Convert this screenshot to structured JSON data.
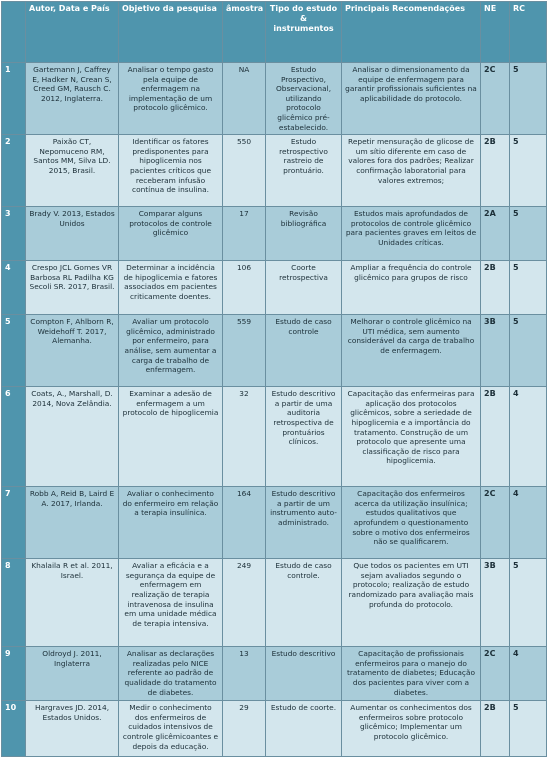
{
  "table": {
    "headers": {
      "num": "",
      "author": "Autor, Data e País",
      "objective": "Objetivo da pesquisa",
      "sample": "âmostra",
      "study": "Tipo do estudo & instrumentos",
      "recommendations": "Principais Recomendações",
      "ne": "NE",
      "rc": "RC"
    },
    "rows": [
      {
        "num": "1",
        "author": "Gartemann J, Caffrey E, Hadker N, Crean S, Creed GM, Rausch C. 2012, Inglaterra.",
        "objective": "Analisar o tempo gasto pela equipe de enfermagem na implementação de um protocolo glicêmico.",
        "sample": "NA",
        "study": "Estudo Prospectivo, Observacional, utilizando protocolo glicêmico pré-estabelecido.",
        "recommendations": "Analisar o dimensionamento da equipe de enfermagem para garantir profissionais suficientes na aplicabilidade do protocolo.",
        "ne": "2C",
        "rc": "5"
      },
      {
        "num": "2",
        "author": "Paixão CT, Nepomuceno RM, Santos MM, Silva LD. 2015, Brasil.",
        "objective": "Identificar os fatores predisponentes para hipoglicemia nos pacientes críticos que receberam infusão contínua de insulina.",
        "sample": "550",
        "study": "Estudo retrospectivo rastreio de prontuário.",
        "recommendations": "Repetir mensuração de glicose de um sítio diferente em caso de valores fora dos padrões; Realizar confirmação laboratorial para valores extremos;",
        "ne": "2B",
        "rc": "5"
      },
      {
        "num": "3",
        "author": "Brady V. 2013, Estados Unidos",
        "objective": "Comparar alguns protocolos de controle glicêmico",
        "sample": "17",
        "study": "Revisão bibliográfica",
        "recommendations": "Estudos mais aprofundados de protocolos de controle glicêmico para pacientes graves em leitos de Unidades críticas.",
        "ne": "2A",
        "rc": "5"
      },
      {
        "num": "4",
        "author": "Crespo JCL Gomes VR Barbosa RL Padilha KG Secoli SR. 2017, Brasil.",
        "objective": "Determinar a incidência de hipoglicemia e fatores associados em pacientes criticamente doentes.",
        "sample": "106",
        "study": "Coorte retrospectiva",
        "recommendations": "Ampliar a frequência do controle glicêmico para grupos de risco",
        "ne": "2B",
        "rc": "5"
      },
      {
        "num": "5",
        "author": "Compton F, Ahlborn R, Weidehoff T. 2017, Alemanha.",
        "objective": "Avaliar um protocolo glicêmico, administrado por enfermeiro, para análise, sem aumentar a carga de trabalho de enfermagem.",
        "sample": "559",
        "study": "Estudo de caso controle",
        "recommendations": "Melhorar o controle glicêmico na UTI médica, sem aumento considerável da carga de trabalho de enfermagem.",
        "ne": "3B",
        "rc": "5"
      },
      {
        "num": "6",
        "author": "Coats, A., Marshall, D. 2014, Nova Zelândia.",
        "objective": "Examinar a adesão de enfermagem a um protocolo de hipoglicemia",
        "sample": "32",
        "study": "Estudo descritivo a partir de uma auditoria retrospectiva de prontuários clínicos.",
        "recommendations": "Capacitação das enfermeiras para aplicação dos protocolos glicêmicos, sobre a seriedade de hipoglicemia e a importância do tratamento. Construção de um protocolo que apresente uma classificação de risco para hipoglicemia.",
        "ne": "2B",
        "rc": "4"
      },
      {
        "num": "7",
        "author": "Robb A, Reid B, Laird E A. 2017, Irlanda.",
        "objective": "Avaliar o conhecimento do enfermeiro em relação a terapia insulínica.",
        "sample": "164",
        "study": "Estudo descritivo a partir de um instrumento auto-administrado.",
        "recommendations": "Capacitação dos enfermeiros acerca da utilização insulínica; estudos qualitativos que aprofundem o questionamento sobre o motivo dos enfermeiros não se qualificarem.",
        "ne": "2C",
        "rc": "4"
      },
      {
        "num": "8",
        "author": "Khalaila R et al. 2011, Israel.",
        "objective": "Avaliar a eficácia e a segurança da equipe de enfermagem em realização de terapia intravenosa de insulina em uma unidade médica de terapia intensiva.",
        "sample": "249",
        "study": "Estudo de caso controle.",
        "recommendations": "Que todos os pacientes em UTI sejam avaliados segundo o protocolo; realização de estudo randomizado para avaliação mais profunda do protocolo.",
        "ne": "3B",
        "rc": "5"
      },
      {
        "num": "9",
        "author": "Oldroyd J. 2011, Inglaterra",
        "objective": "Analisar as declarações realizadas pelo NICE referente ao padrão de qualidade do tratamento de diabetes.",
        "sample": "13",
        "study": "Estudo descritivo",
        "recommendations": "Capacitação de profissionais enfermeiros para o manejo do tratamento de diabetes; Educação dos pacientes para viver com a diabetes.",
        "ne": "2C",
        "rc": "4"
      },
      {
        "num": "10",
        "author": "Hargraves JD. 2014, Estados Unidos.",
        "objective": "Medir o conhecimento dos enfermeiros de cuidados intensivos de controle glicêmicoantes e depois da educação.",
        "sample": "29",
        "study": "Estudo de coorte.",
        "recommendations": "Aumentar os conhecimentos dos enfermeiros sobre protocolo glicêmico; Implementar um protocolo glicêmico.",
        "ne": "2B",
        "rc": "5"
      }
    ]
  }
}
